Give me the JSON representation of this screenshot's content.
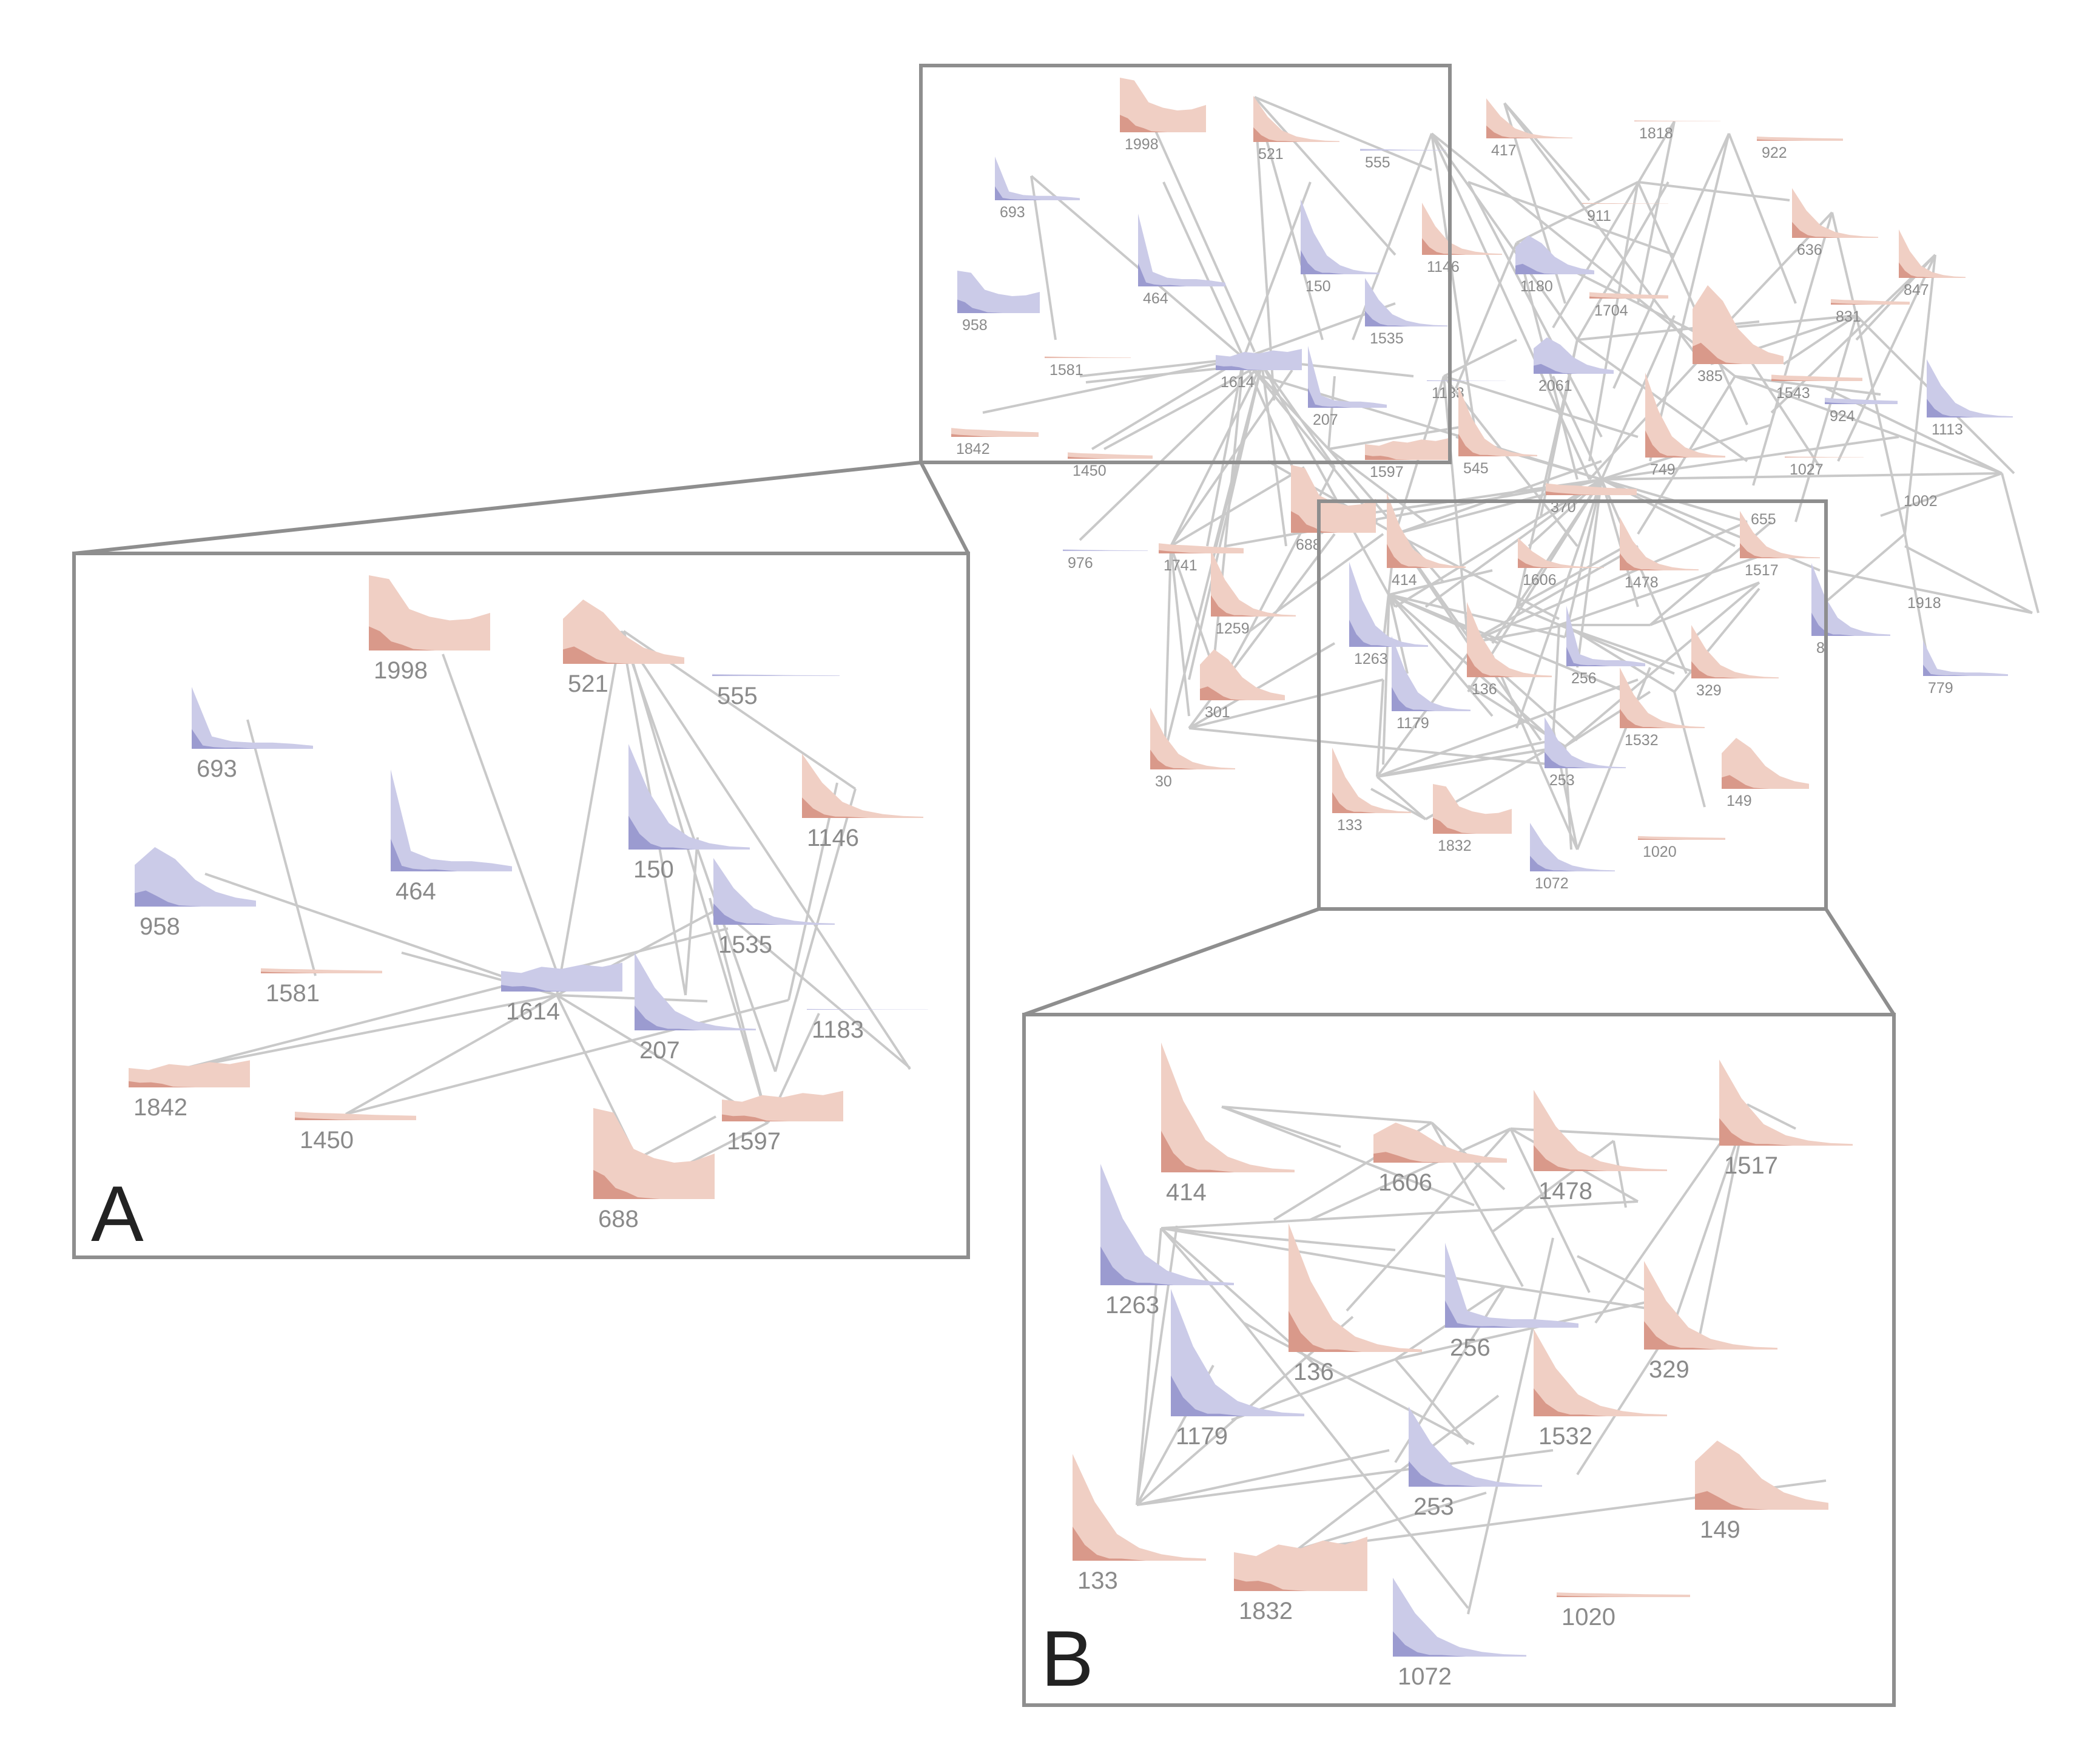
{
  "colors": {
    "red_light": "#f0cfc4",
    "red_dark": "#d9998a",
    "blue_light": "#cbcbe8",
    "blue_dark": "#9b9bd0",
    "edge": "#c9c9c9",
    "frame": "#8e8e8e",
    "label": "#8a8a8a"
  },
  "panels": {
    "A": {
      "letter": "A"
    },
    "B": {
      "letter": "B"
    }
  },
  "main_nodes": [
    {
      "id": "1998",
      "c": "red"
    },
    {
      "id": "521",
      "c": "red"
    },
    {
      "id": "555",
      "c": "blue"
    },
    {
      "id": "417",
      "c": "red"
    },
    {
      "id": "1818",
      "c": "red"
    },
    {
      "id": "922",
      "c": "red"
    },
    {
      "id": "693",
      "c": "blue"
    },
    {
      "id": "911",
      "c": "red"
    },
    {
      "id": "636",
      "c": "red"
    },
    {
      "id": "1146",
      "c": "red"
    },
    {
      "id": "1180",
      "c": "blue"
    },
    {
      "id": "847",
      "c": "red"
    },
    {
      "id": "464",
      "c": "blue"
    },
    {
      "id": "150",
      "c": "blue"
    },
    {
      "id": "1704",
      "c": "red"
    },
    {
      "id": "831",
      "c": "red"
    },
    {
      "id": "958",
      "c": "blue"
    },
    {
      "id": "1535",
      "c": "blue"
    },
    {
      "id": "385",
      "c": "red"
    },
    {
      "id": "1581",
      "c": "red"
    },
    {
      "id": "1614",
      "c": "blue"
    },
    {
      "id": "2061",
      "c": "blue"
    },
    {
      "id": "1543",
      "c": "red"
    },
    {
      "id": "924",
      "c": "blue"
    },
    {
      "id": "1113",
      "c": "blue"
    },
    {
      "id": "207",
      "c": "blue"
    },
    {
      "id": "1183",
      "c": "blue"
    },
    {
      "id": "1842",
      "c": "red"
    },
    {
      "id": "1450",
      "c": "red"
    },
    {
      "id": "1597",
      "c": "red"
    },
    {
      "id": "545",
      "c": "red"
    },
    {
      "id": "749",
      "c": "red"
    },
    {
      "id": "1027",
      "c": "red"
    },
    {
      "id": "370",
      "c": "red"
    },
    {
      "id": "1002",
      "c": "red"
    },
    {
      "id": "976",
      "c": "blue"
    },
    {
      "id": "1741",
      "c": "red"
    },
    {
      "id": "688",
      "c": "red"
    },
    {
      "id": "414",
      "c": "red"
    },
    {
      "id": "1606",
      "c": "red"
    },
    {
      "id": "1478",
      "c": "red"
    },
    {
      "id": "1517",
      "c": "red"
    },
    {
      "id": "655",
      "c": "red"
    },
    {
      "id": "1259",
      "c": "red"
    },
    {
      "id": "1918",
      "c": "red"
    },
    {
      "id": "1263",
      "c": "blue"
    },
    {
      "id": "136",
      "c": "red"
    },
    {
      "id": "256",
      "c": "blue"
    },
    {
      "id": "329",
      "c": "red"
    },
    {
      "id": "8",
      "c": "blue"
    },
    {
      "id": "779",
      "c": "blue"
    },
    {
      "id": "301",
      "c": "red"
    },
    {
      "id": "1179",
      "c": "blue"
    },
    {
      "id": "1532",
      "c": "red"
    },
    {
      "id": "253",
      "c": "blue"
    },
    {
      "id": "149",
      "c": "red"
    },
    {
      "id": "30",
      "c": "red"
    },
    {
      "id": "133",
      "c": "red"
    },
    {
      "id": "1832",
      "c": "red"
    },
    {
      "id": "1020",
      "c": "red"
    },
    {
      "id": "1072",
      "c": "blue"
    }
  ],
  "zoom_a_nodes": [
    {
      "id": "1998",
      "c": "red"
    },
    {
      "id": "521",
      "c": "red"
    },
    {
      "id": "555",
      "c": "blue"
    },
    {
      "id": "693",
      "c": "blue"
    },
    {
      "id": "464",
      "c": "blue"
    },
    {
      "id": "150",
      "c": "blue"
    },
    {
      "id": "1146",
      "c": "red"
    },
    {
      "id": "958",
      "c": "blue"
    },
    {
      "id": "1535",
      "c": "blue"
    },
    {
      "id": "1581",
      "c": "red"
    },
    {
      "id": "1614",
      "c": "blue"
    },
    {
      "id": "207",
      "c": "blue"
    },
    {
      "id": "1183",
      "c": "blue"
    },
    {
      "id": "1842",
      "c": "red"
    },
    {
      "id": "1450",
      "c": "red"
    },
    {
      "id": "1597",
      "c": "red"
    },
    {
      "id": "688",
      "c": "red"
    }
  ],
  "zoom_b_nodes": [
    {
      "id": "414",
      "c": "red"
    },
    {
      "id": "1606",
      "c": "red"
    },
    {
      "id": "1478",
      "c": "red"
    },
    {
      "id": "1517",
      "c": "red"
    },
    {
      "id": "1263",
      "c": "blue"
    },
    {
      "id": "136",
      "c": "red"
    },
    {
      "id": "256",
      "c": "blue"
    },
    {
      "id": "329",
      "c": "red"
    },
    {
      "id": "1179",
      "c": "blue"
    },
    {
      "id": "1532",
      "c": "red"
    },
    {
      "id": "253",
      "c": "blue"
    },
    {
      "id": "149",
      "c": "red"
    },
    {
      "id": "133",
      "c": "red"
    },
    {
      "id": "1832",
      "c": "red"
    },
    {
      "id": "1020",
      "c": "red"
    },
    {
      "id": "1072",
      "c": "blue"
    }
  ]
}
